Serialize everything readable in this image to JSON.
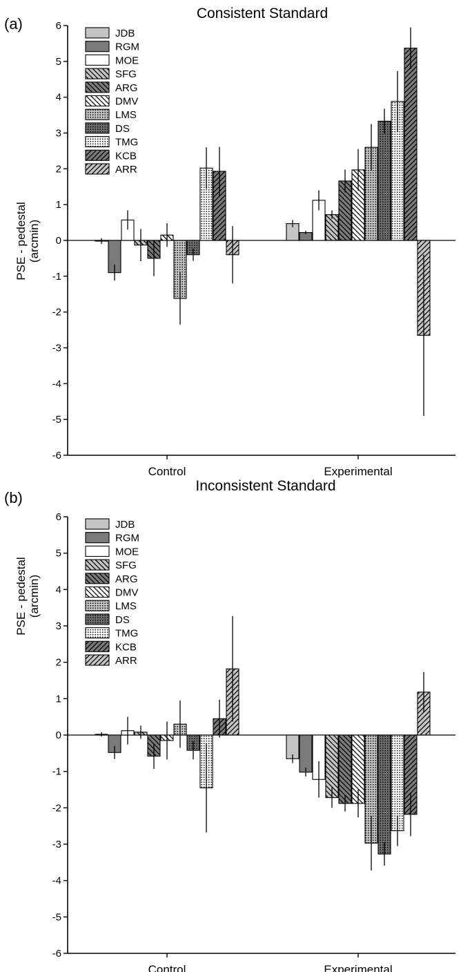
{
  "figure": {
    "ylabel_line1": "PSE  - pedestal",
    "ylabel_line2": "(arcmin)"
  },
  "chart_data": [
    {
      "type": "bar",
      "panel_label": "(a)",
      "title": "Consistent Standard",
      "ylabel": "PSE  - pedestal (arcmin)",
      "ylim": [
        -6,
        6
      ],
      "yticks": [
        6,
        5,
        4,
        3,
        2,
        1,
        0,
        -1,
        -2,
        -3,
        -4,
        -5,
        -6
      ],
      "categories": [
        "Control",
        "Experimental"
      ],
      "legend_position": "top-left",
      "series": [
        {
          "name": "JDB",
          "fill": "#c4c4c4",
          "pattern": "none",
          "values": [
            -0.02,
            0.47
          ],
          "errors": [
            0.08,
            0.1
          ]
        },
        {
          "name": "RGM",
          "fill": "#7a7a7a",
          "pattern": "none",
          "values": [
            -0.9,
            0.22
          ],
          "errors": [
            0.22,
            0.05
          ]
        },
        {
          "name": "MOE",
          "fill": "#ffffff",
          "pattern": "none",
          "values": [
            0.57,
            1.12
          ],
          "errors": [
            0.27,
            0.28
          ]
        },
        {
          "name": "SFG",
          "fill": "#c4c4c4",
          "pattern": "diag-down",
          "values": [
            -0.13,
            0.72
          ],
          "errors": [
            0.45,
            0.12
          ]
        },
        {
          "name": "ARG",
          "fill": "#7a7a7a",
          "pattern": "diag-down",
          "values": [
            -0.5,
            1.66
          ],
          "errors": [
            0.5,
            0.32
          ]
        },
        {
          "name": "DMV",
          "fill": "#ffffff",
          "pattern": "diag-down",
          "values": [
            0.15,
            1.97
          ],
          "errors": [
            0.33,
            0.58
          ]
        },
        {
          "name": "LMS",
          "fill": "#c4c4c4",
          "pattern": "dots",
          "values": [
            -1.62,
            2.6
          ],
          "errors": [
            0.73,
            0.65
          ]
        },
        {
          "name": "DS",
          "fill": "#6e6e6e",
          "pattern": "dots",
          "values": [
            -0.4,
            3.33
          ],
          "errors": [
            0.17,
            0.35
          ]
        },
        {
          "name": "TMG",
          "fill": "#ffffff",
          "pattern": "dots",
          "values": [
            2.02,
            3.88
          ],
          "errors": [
            0.58,
            0.85
          ]
        },
        {
          "name": "KCB",
          "fill": "#7a7a7a",
          "pattern": "diag-up",
          "values": [
            1.93,
            5.37
          ],
          "errors": [
            0.68,
            0.58
          ]
        },
        {
          "name": "ARR",
          "fill": "#c4c4c4",
          "pattern": "diag-up",
          "values": [
            -0.4,
            -2.65
          ],
          "errors": [
            0.8,
            2.25
          ]
        }
      ]
    },
    {
      "type": "bar",
      "panel_label": "(b)",
      "title": "Inconsistent Standard",
      "ylabel": "PSE  - pedestal (arcmin)",
      "ylim": [
        -6,
        6
      ],
      "yticks": [
        6,
        5,
        4,
        3,
        2,
        1,
        0,
        -1,
        -2,
        -3,
        -4,
        -5,
        -6
      ],
      "categories": [
        "Control",
        "Experimental"
      ],
      "legend_position": "top-left",
      "series": [
        {
          "name": "JDB",
          "fill": "#c4c4c4",
          "pattern": "none",
          "values": [
            0.02,
            -0.65
          ],
          "errors": [
            0.06,
            0.12
          ]
        },
        {
          "name": "RGM",
          "fill": "#7a7a7a",
          "pattern": "none",
          "values": [
            -0.48,
            -1.02
          ],
          "errors": [
            0.18,
            0.12
          ]
        },
        {
          "name": "MOE",
          "fill": "#ffffff",
          "pattern": "none",
          "values": [
            0.12,
            -1.22
          ],
          "errors": [
            0.38,
            0.5
          ]
        },
        {
          "name": "SFG",
          "fill": "#c4c4c4",
          "pattern": "diag-down",
          "values": [
            0.08,
            -1.72
          ],
          "errors": [
            0.18,
            0.28
          ]
        },
        {
          "name": "ARG",
          "fill": "#7a7a7a",
          "pattern": "diag-down",
          "values": [
            -0.58,
            -1.88
          ],
          "errors": [
            0.35,
            0.22
          ]
        },
        {
          "name": "DMV",
          "fill": "#ffffff",
          "pattern": "diag-down",
          "values": [
            -0.15,
            -1.88
          ],
          "errors": [
            0.52,
            0.38
          ]
        },
        {
          "name": "LMS",
          "fill": "#c4c4c4",
          "pattern": "dots",
          "values": [
            0.3,
            -2.97
          ],
          "errors": [
            0.65,
            0.75
          ]
        },
        {
          "name": "DS",
          "fill": "#6e6e6e",
          "pattern": "dots",
          "values": [
            -0.42,
            -3.27
          ],
          "errors": [
            0.25,
            0.32
          ]
        },
        {
          "name": "TMG",
          "fill": "#ffffff",
          "pattern": "dots",
          "values": [
            -1.45,
            -2.63
          ],
          "errors": [
            1.23,
            0.42
          ]
        },
        {
          "name": "KCB",
          "fill": "#7a7a7a",
          "pattern": "diag-up",
          "values": [
            0.45,
            -2.18
          ],
          "errors": [
            0.52,
            0.6
          ]
        },
        {
          "name": "ARR",
          "fill": "#c4c4c4",
          "pattern": "diag-up",
          "values": [
            1.82,
            1.18
          ],
          "errors": [
            1.45,
            0.55
          ]
        }
      ]
    }
  ]
}
